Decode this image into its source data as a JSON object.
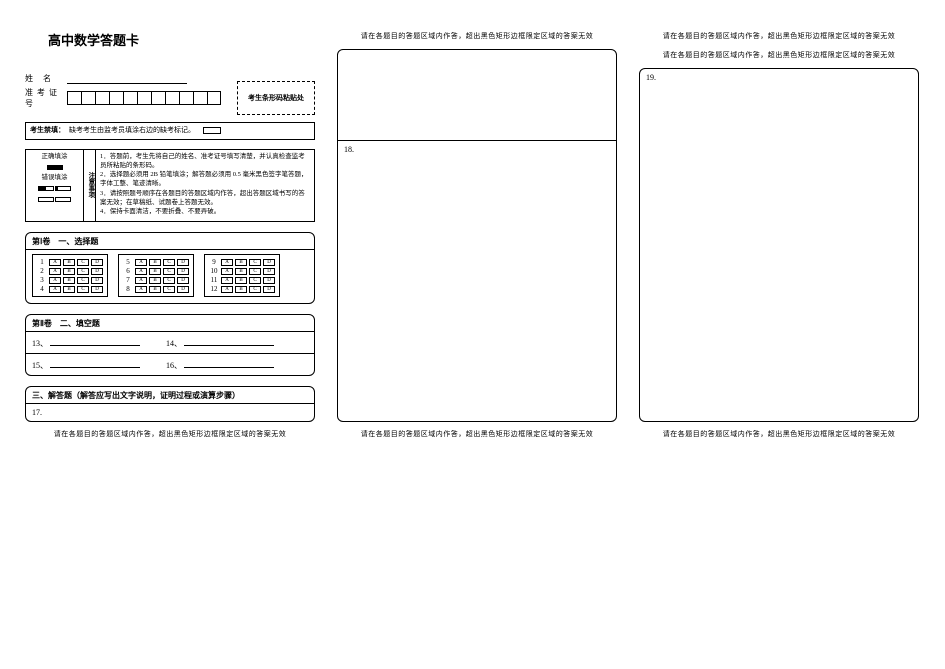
{
  "title": "高中数学答题卡",
  "info": {
    "name_label": "姓 名",
    "ticket_label": "准考证号",
    "ticket_cells": 11,
    "barcode_label": "考生条形码粘贴处"
  },
  "examinee_notice": {
    "label": "考生禁填：",
    "text": "缺考考生由监考员填涂右边的缺考标记。"
  },
  "fill_example": {
    "left_header": "填涂样例",
    "correct_label": "正确填涂",
    "wrong_label": "错误填涂",
    "mid_header": "注意事项",
    "rules": [
      "1．答题前，考生先将自己的姓名、准考证号填写清楚，并认真检查监考员所粘贴的条形码。",
      "2．选择题必须用 2B 铅笔填涂；解答题必须用 0.5 毫米黑色签字笔答题，字体工整、笔迹清晰。",
      "3．请按照题号顺序在各题目的答题区域内作答，超出答题区域书写的答案无效；在草稿纸、试题卷上答题无效。",
      "4．保持卡面清洁，不要折叠、不要弄破。"
    ]
  },
  "part1": {
    "title": "第Ⅰ卷　一、选择题",
    "options": [
      "A",
      "B",
      "C",
      "D"
    ],
    "groups": [
      [
        1,
        2,
        3,
        4
      ],
      [
        5,
        6,
        7,
        8
      ],
      [
        9,
        10,
        11,
        12
      ]
    ]
  },
  "part2": {
    "title": "第Ⅱ卷　二、填空题",
    "rows": [
      [
        "13、",
        "14、"
      ],
      [
        "15、",
        "16、"
      ]
    ]
  },
  "part3": {
    "title": "三、解答题（解答应写出文字说明，证明过程或演算步骤）",
    "q17": "17.",
    "q18": "18.",
    "q19": "19."
  },
  "boundary_note": "请在各题目的答题区域内作答，超出黑色矩形边框限定区域的答案无效",
  "colors": {
    "border": "#000000",
    "background": "#ffffff"
  }
}
